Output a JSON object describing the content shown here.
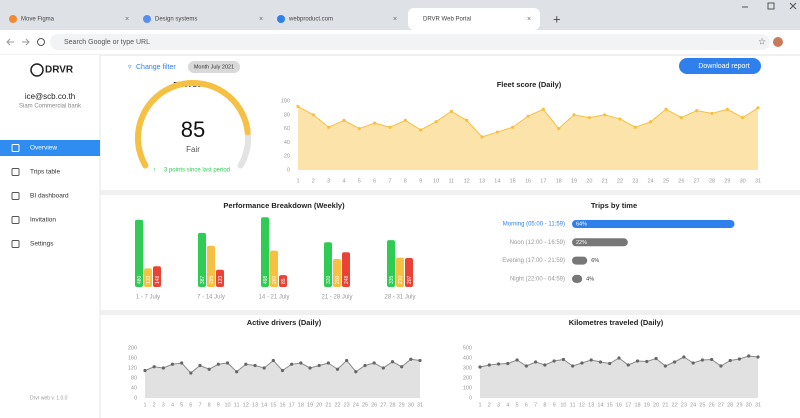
{
  "browser": {
    "tabs": [
      "Move Figma",
      "Design systems",
      "webproduct.com",
      "DRVR Web Portal"
    ],
    "address": "Search Google or type URL"
  },
  "sidebar": {
    "brand": "DRVR",
    "email": "ice@scb.co.th",
    "company": "Siam Commercial bank",
    "nav": [
      "Overview",
      "Trips table",
      "BI dashboard",
      "Invitation",
      "Settings"
    ],
    "version": "Drvr web v. 1.0.0"
  },
  "toolbar": {
    "filter": "Change filter",
    "period": "Month July 2021",
    "download": "Download report"
  },
  "chart_data": [
    {
      "type": "gauge",
      "title": "Fleet score",
      "value": 85,
      "label": "Fair",
      "note": "3 points since last period",
      "ylim": [
        0,
        100
      ],
      "color": "#f6c042"
    },
    {
      "type": "area",
      "title": "Fleet score (Daily)",
      "color": "#f6c042",
      "x": [
        1,
        2,
        3,
        4,
        5,
        6,
        7,
        8,
        9,
        10,
        11,
        12,
        13,
        14,
        15,
        16,
        17,
        18,
        19,
        20,
        21,
        22,
        23,
        24,
        25,
        26,
        27,
        28,
        29,
        30,
        31
      ],
      "values": [
        92,
        80,
        62,
        72,
        60,
        68,
        62,
        72,
        58,
        70,
        85,
        72,
        48,
        55,
        62,
        78,
        88,
        60,
        80,
        76,
        80,
        74,
        62,
        70,
        88,
        76,
        86,
        82,
        88,
        76,
        90
      ],
      "xlim": [
        1,
        31
      ],
      "ylim": [
        0,
        100
      ],
      "yticks": [
        0,
        20,
        40,
        60,
        80,
        100
      ]
    },
    {
      "type": "bar",
      "title": "Performance Breakdown (Weekly)",
      "categories": [
        "1 - 7 July",
        "7 - 14 July",
        "14 - 21 July",
        "21 - 28 July",
        "28 - 31 July"
      ],
      "ylim": [
        0,
        500
      ],
      "series": [
        {
          "color": "#2ecc52",
          "values": [
            480,
            387,
            498,
            320,
            335
          ]
        },
        {
          "color": "#f6c042",
          "values": [
            133,
            295,
            260,
            200,
            210
          ]
        },
        {
          "color": "#ea4335",
          "values": [
            148,
            123,
            85,
            248,
            207
          ]
        }
      ]
    },
    {
      "type": "hbar",
      "title": "Trips by time",
      "categories": [
        "Morning (05:00 - 11:59)",
        "Noon (12:00 - 16:59)",
        "Evening (17:00 - 21:59)",
        "Night (22:00 - 04:59)"
      ],
      "values": [
        64,
        22,
        6,
        4
      ],
      "value_labels": [
        "64%",
        "22%",
        "6%",
        "4%"
      ],
      "xlim": [
        0,
        65
      ],
      "colors": [
        "#2f80ed",
        "#777777",
        "#777777",
        "#777777"
      ]
    },
    {
      "type": "area",
      "title": "Active drivers (Daily)",
      "color": "#bdbdbd",
      "x": [
        1,
        2,
        3,
        4,
        5,
        6,
        7,
        8,
        9,
        10,
        11,
        12,
        13,
        14,
        15,
        16,
        17,
        18,
        19,
        20,
        21,
        22,
        23,
        24,
        25,
        26,
        27,
        28,
        29,
        30,
        31
      ],
      "values": [
        110,
        125,
        120,
        135,
        140,
        100,
        130,
        115,
        135,
        140,
        105,
        135,
        130,
        120,
        150,
        110,
        135,
        140,
        120,
        130,
        140,
        115,
        150,
        105,
        130,
        140,
        120,
        145,
        125,
        155,
        150
      ],
      "xlim": [
        1,
        31
      ],
      "ylim": [
        0,
        200
      ],
      "yticks": [
        0,
        40,
        80,
        120,
        160,
        200
      ]
    },
    {
      "type": "area",
      "title": "Kilometres traveled (Daily)",
      "color": "#bdbdbd",
      "x": [
        1,
        2,
        3,
        4,
        5,
        6,
        7,
        8,
        9,
        10,
        11,
        12,
        13,
        14,
        15,
        16,
        17,
        18,
        19,
        20,
        21,
        22,
        23,
        24,
        25,
        26,
        27,
        28,
        29,
        30,
        31
      ],
      "values": [
        310,
        330,
        340,
        345,
        380,
        320,
        360,
        330,
        370,
        385,
        320,
        350,
        380,
        360,
        345,
        400,
        330,
        370,
        365,
        395,
        320,
        360,
        410,
        350,
        380,
        385,
        320,
        375,
        390,
        420,
        410
      ],
      "xlim": [
        1,
        31
      ],
      "ylim": [
        0,
        500
      ],
      "yticks": [
        0,
        100,
        200,
        300,
        400,
        500
      ]
    }
  ]
}
